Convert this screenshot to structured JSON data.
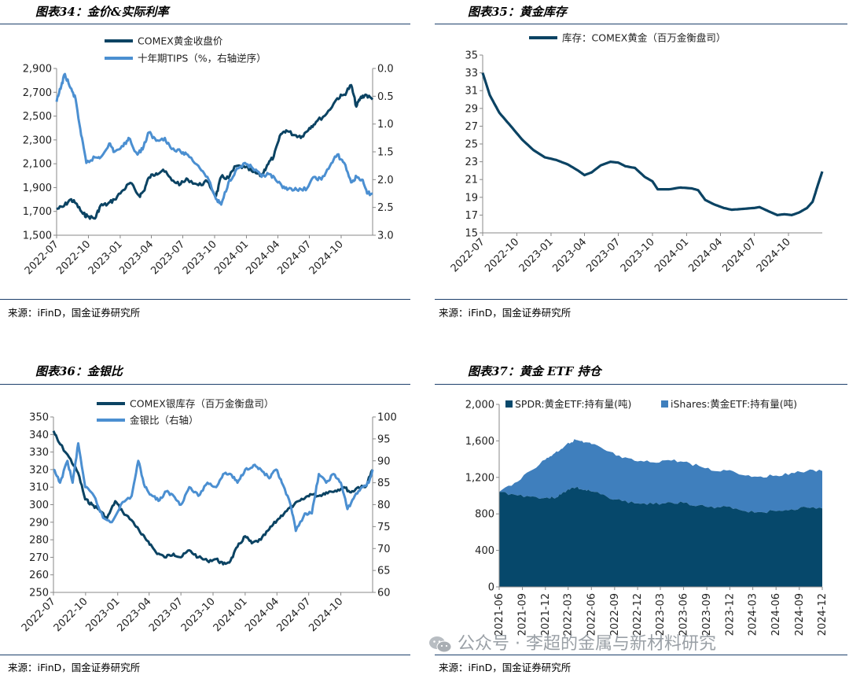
{
  "colors": {
    "dark": "#0b4363",
    "light": "#4b8fd1",
    "spdr": "#06486b",
    "ishares": "#3f7fbd",
    "rule": "#1d3f6b"
  },
  "panels": {
    "p34": {
      "title": "图表34：金价&实际利率",
      "source": "来源：iFinD，国金证券研究所"
    },
    "p35": {
      "title": "图表35：黄金库存",
      "source": "来源：iFinD，国金证券研究所"
    },
    "p36": {
      "title": "图表36：金银比",
      "source": "来源：iFinD，国金证券研究所"
    },
    "p37": {
      "title": "图表37：黄金 ETF 持仓",
      "source": "来源：iFinD，国金证券研究所"
    }
  },
  "watermark": {
    "text": "公众号 · 李超的金属与新材料研究",
    "icon": "wechat-icon"
  },
  "chart_data": [
    {
      "id": "gold-real-rate",
      "type": "line",
      "x_ticks": [
        "2022-07",
        "2022-10",
        "2023-01",
        "2023-04",
        "2023-07",
        "2023-10",
        "2024-01",
        "2024-04",
        "2024-07",
        "2024-10"
      ],
      "y_left_ticks": [
        "2,900",
        "2,700",
        "2,500",
        "2,300",
        "2,100",
        "1,900",
        "1,700",
        "1,500"
      ],
      "y_right_ticks": [
        "0.0",
        "0.5",
        "1.0",
        "1.5",
        "2.0",
        "2.5",
        "3.0"
      ],
      "ylim_left": [
        1500,
        2900
      ],
      "ylim_right": [
        0,
        3.0
      ],
      "right_axis_inverted": true,
      "legend": "top-center",
      "series": [
        {
          "name": "COMEX黄金收盘价",
          "axis": "left",
          "color": "#0b4363",
          "x": [
            "2022-07-01",
            "2022-07-20",
            "2022-08-10",
            "2022-08-25",
            "2022-09-15",
            "2022-09-28",
            "2022-10-20",
            "2022-11-05",
            "2022-11-25",
            "2022-12-15",
            "2023-01-10",
            "2023-01-30",
            "2023-02-25",
            "2023-03-10",
            "2023-03-25",
            "2023-04-15",
            "2023-05-05",
            "2023-05-30",
            "2023-06-25",
            "2023-07-15",
            "2023-08-15",
            "2023-09-10",
            "2023-10-05",
            "2023-10-20",
            "2023-11-10",
            "2023-12-01",
            "2023-12-28",
            "2024-01-20",
            "2024-02-14",
            "2024-03-01",
            "2024-03-20",
            "2024-04-10",
            "2024-04-25",
            "2024-05-20",
            "2024-06-10",
            "2024-07-01",
            "2024-07-20",
            "2024-08-20",
            "2024-09-20",
            "2024-10-10",
            "2024-10-30",
            "2024-11-14",
            "2024-11-25",
            "2024-12-10",
            "2024-12-31"
          ],
          "y": [
            1720,
            1740,
            1800,
            1770,
            1680,
            1660,
            1640,
            1750,
            1760,
            1800,
            1880,
            1940,
            1830,
            1870,
            1985,
            2020,
            2050,
            1960,
            1930,
            1970,
            1920,
            1950,
            1830,
            1990,
            1980,
            2080,
            2070,
            2030,
            2000,
            2090,
            2160,
            2350,
            2380,
            2340,
            2330,
            2400,
            2450,
            2520,
            2650,
            2680,
            2760,
            2580,
            2650,
            2680,
            2640
          ]
        },
        {
          "name": "十年期TIPS（%，右轴逆序）",
          "axis": "right",
          "color": "#4b8fd1",
          "x": [
            "2022-07-01",
            "2022-07-15",
            "2022-07-25",
            "2022-08-10",
            "2022-08-25",
            "2022-09-10",
            "2022-09-25",
            "2022-10-20",
            "2022-11-05",
            "2022-11-30",
            "2022-12-15",
            "2023-01-10",
            "2023-01-25",
            "2023-02-20",
            "2023-03-10",
            "2023-03-25",
            "2023-04-15",
            "2023-05-10",
            "2023-05-30",
            "2023-06-25",
            "2023-07-15",
            "2023-08-15",
            "2023-09-10",
            "2023-10-05",
            "2023-10-20",
            "2023-11-10",
            "2023-11-30",
            "2023-12-28",
            "2024-01-20",
            "2024-02-14",
            "2024-03-05",
            "2024-03-25",
            "2024-04-15",
            "2024-05-05",
            "2024-05-30",
            "2024-06-25",
            "2024-07-15",
            "2024-08-05",
            "2024-08-30",
            "2024-09-20",
            "2024-10-10",
            "2024-10-30",
            "2024-11-15",
            "2024-11-30",
            "2024-12-15",
            "2024-12-31"
          ],
          "y": [
            0.6,
            0.3,
            0.1,
            0.35,
            0.55,
            1.2,
            1.7,
            1.6,
            1.6,
            1.35,
            1.5,
            1.4,
            1.25,
            1.55,
            1.4,
            1.15,
            1.3,
            1.25,
            1.45,
            1.5,
            1.55,
            1.75,
            1.95,
            2.35,
            2.45,
            2.05,
            1.85,
            1.7,
            1.8,
            1.95,
            1.9,
            2.0,
            2.15,
            2.15,
            2.2,
            2.15,
            1.95,
            2.0,
            1.75,
            1.55,
            1.7,
            2.05,
            1.95,
            2.0,
            2.25,
            2.25
          ]
        }
      ]
    },
    {
      "id": "gold-inventory",
      "type": "line",
      "x_ticks": [
        "2022-07",
        "2022-10",
        "2023-01",
        "2023-04",
        "2023-07",
        "2023-10",
        "2024-01",
        "2024-04",
        "2024-07",
        "2024-10"
      ],
      "y_ticks": [
        "35",
        "33",
        "31",
        "29",
        "27",
        "25",
        "23",
        "21",
        "19",
        "17",
        "15"
      ],
      "ylim": [
        15,
        35
      ],
      "legend": "top-left",
      "series": [
        {
          "name": "库存：COMEX黄金（百万金衡盘司）",
          "color": "#0b4363",
          "x": [
            "2022-07-01",
            "2022-07-20",
            "2022-08-15",
            "2022-09-15",
            "2022-10-15",
            "2022-11-15",
            "2022-12-15",
            "2023-01-15",
            "2023-02-15",
            "2023-03-15",
            "2023-04-01",
            "2023-04-20",
            "2023-05-15",
            "2023-06-10",
            "2023-07-01",
            "2023-07-20",
            "2023-08-15",
            "2023-09-10",
            "2023-10-01",
            "2023-10-15",
            "2023-11-15",
            "2023-12-15",
            "2024-01-15",
            "2024-02-01",
            "2024-02-20",
            "2024-03-15",
            "2024-04-10",
            "2024-05-01",
            "2024-06-01",
            "2024-07-01",
            "2024-07-15",
            "2024-08-10",
            "2024-09-01",
            "2024-09-20",
            "2024-10-10",
            "2024-10-30",
            "2024-11-20",
            "2024-12-05",
            "2024-12-20",
            "2024-12-31"
          ],
          "y": [
            33,
            30.5,
            28.5,
            27,
            25.5,
            24.3,
            23.5,
            23.2,
            22.7,
            22,
            21.5,
            21.8,
            22.6,
            23,
            22.9,
            22.5,
            22.3,
            21.3,
            20.8,
            19.9,
            19.9,
            20.1,
            20,
            19.8,
            18.7,
            18.2,
            17.8,
            17.6,
            17.7,
            17.8,
            17.9,
            17.4,
            17,
            17.1,
            17,
            17.3,
            17.8,
            18.5,
            20.5,
            21.9
          ]
        }
      ]
    },
    {
      "id": "gold-silver-ratio",
      "type": "line",
      "x_ticks": [
        "2022-07",
        "2022-10",
        "2023-01",
        "2023-04",
        "2023-07",
        "2023-10",
        "2024-01",
        "2024-04",
        "2024-07",
        "2024-10"
      ],
      "y_left_ticks": [
        "350",
        "340",
        "330",
        "320",
        "310",
        "300",
        "290",
        "280",
        "270",
        "260",
        "250"
      ],
      "y_right_ticks": [
        "100",
        "95",
        "90",
        "85",
        "80",
        "75",
        "70",
        "65",
        "60"
      ],
      "ylim_left": [
        250,
        350
      ],
      "ylim_right": [
        60,
        100
      ],
      "legend": "top-center",
      "series": [
        {
          "name": "COMEX银库存（百万金衡盘司）",
          "axis": "left",
          "color": "#0b4363",
          "x": [
            "2022-07-01",
            "2022-07-15",
            "2022-08-15",
            "2022-09-10",
            "2022-09-30",
            "2022-10-20",
            "2022-11-10",
            "2022-12-01",
            "2022-12-25",
            "2023-01-15",
            "2023-02-15",
            "2023-03-10",
            "2023-03-30",
            "2023-04-20",
            "2023-05-15",
            "2023-06-10",
            "2023-07-01",
            "2023-07-25",
            "2023-08-20",
            "2023-09-15",
            "2023-10-10",
            "2023-10-30",
            "2023-11-20",
            "2023-12-10",
            "2024-01-01",
            "2024-01-20",
            "2024-02-15",
            "2024-03-10",
            "2024-04-01",
            "2024-04-25",
            "2024-05-20",
            "2024-06-15",
            "2024-07-05",
            "2024-07-30",
            "2024-08-20",
            "2024-09-15",
            "2024-10-10",
            "2024-10-30",
            "2024-11-20",
            "2024-12-10",
            "2024-12-31"
          ],
          "y": [
            342,
            336,
            327,
            318,
            303,
            300,
            297,
            292,
            302,
            296,
            290,
            283,
            279,
            273,
            270,
            272,
            270,
            274,
            270,
            268,
            269,
            266,
            268,
            276,
            282,
            278,
            280,
            286,
            291,
            296,
            300,
            303,
            306,
            305,
            307,
            308,
            310,
            307,
            310,
            310,
            320
          ]
        },
        {
          "name": "金银比（右轴）",
          "axis": "right",
          "color": "#4b8fd1",
          "x": [
            "2022-07-01",
            "2022-07-20",
            "2022-08-10",
            "2022-08-25",
            "2022-09-10",
            "2022-09-30",
            "2022-10-25",
            "2022-11-20",
            "2022-12-15",
            "2023-01-10",
            "2023-02-10",
            "2023-03-01",
            "2023-03-20",
            "2023-04-10",
            "2023-05-01",
            "2023-05-20",
            "2023-06-10",
            "2023-07-01",
            "2023-07-25",
            "2023-08-20",
            "2023-09-15",
            "2023-10-10",
            "2023-10-30",
            "2023-11-20",
            "2023-12-10",
            "2024-01-01",
            "2024-01-25",
            "2024-02-15",
            "2024-03-10",
            "2024-03-30",
            "2024-04-15",
            "2024-05-10",
            "2024-05-25",
            "2024-06-20",
            "2024-07-10",
            "2024-07-30",
            "2024-08-20",
            "2024-09-10",
            "2024-10-01",
            "2024-10-20",
            "2024-11-10",
            "2024-12-01",
            "2024-12-20",
            "2024-12-31"
          ],
          "y": [
            88,
            85,
            90,
            85,
            94,
            84,
            82,
            77,
            76,
            80,
            82,
            90,
            84,
            82,
            81,
            83,
            82,
            80,
            84,
            82,
            85,
            84,
            87,
            87,
            85,
            88,
            89,
            88,
            86,
            88,
            85,
            80,
            74,
            78,
            78,
            87,
            85,
            87,
            85,
            79,
            82,
            84,
            85,
            88
          ]
        }
      ]
    },
    {
      "id": "gold-etf-holdings",
      "type": "area",
      "stacked": true,
      "x_ticks": [
        "2021-06",
        "2021-09",
        "2021-12",
        "2022-03",
        "2022-06",
        "2022-09",
        "2022-12",
        "2023-03",
        "2023-06",
        "2023-09",
        "2023-12",
        "2024-03",
        "2024-06",
        "2024-09",
        "2024-12"
      ],
      "y_ticks": [
        "2,000",
        "1,600",
        "1,200",
        "800",
        "400",
        "0"
      ],
      "ylim": [
        0,
        2000
      ],
      "legend": "top",
      "series": [
        {
          "name": "SPDR:黄金ETF:持有量(吨)",
          "color": "#06486b",
          "x": [
            "2021-06",
            "2021-08",
            "2021-10",
            "2021-12",
            "2022-01",
            "2022-02",
            "2022-03",
            "2022-04",
            "2022-05",
            "2022-06",
            "2022-08",
            "2022-10",
            "2022-12",
            "2023-02",
            "2023-04",
            "2023-06",
            "2023-08",
            "2023-10",
            "2023-12",
            "2024-02",
            "2024-04",
            "2024-06",
            "2024-08",
            "2024-10",
            "2024-12"
          ],
          "y": [
            1040,
            1010,
            990,
            975,
            975,
            1010,
            1070,
            1090,
            1060,
            1045,
            990,
            940,
            915,
            905,
            930,
            920,
            895,
            860,
            880,
            830,
            820,
            830,
            850,
            870,
            860
          ]
        },
        {
          "name": "iShares:黄金ETF:持有量(吨)",
          "color": "#3f7fbd",
          "x": [
            "2021-06",
            "2021-08",
            "2021-10",
            "2021-12",
            "2022-01",
            "2022-02",
            "2022-03",
            "2022-04",
            "2022-05",
            "2022-06",
            "2022-08",
            "2022-10",
            "2022-12",
            "2023-02",
            "2023-04",
            "2023-06",
            "2023-08",
            "2023-10",
            "2023-12",
            "2024-02",
            "2024-04",
            "2024-06",
            "2024-08",
            "2024-10",
            "2024-12"
          ],
          "y": [
            0,
            130,
            280,
            420,
            480,
            500,
            510,
            520,
            520,
            520,
            500,
            470,
            460,
            460,
            460,
            450,
            430,
            410,
            400,
            390,
            390,
            390,
            400,
            400,
            410
          ]
        }
      ]
    }
  ]
}
